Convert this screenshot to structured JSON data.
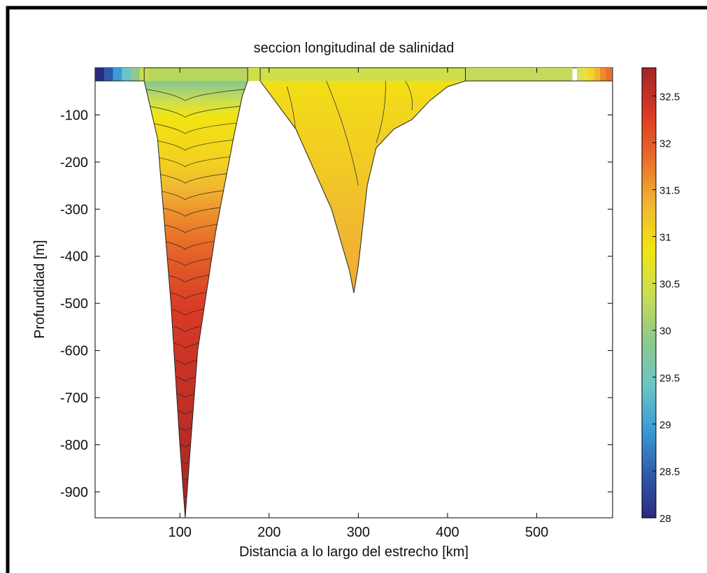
{
  "chart_data": {
    "type": "contour",
    "title": "seccion longitudinal de salinidad",
    "xlabel": "Distancia a lo largo del estrecho [km]",
    "ylabel": "Profundidad [m]",
    "xlim": [
      5,
      585
    ],
    "ylim": [
      -955,
      0
    ],
    "xticks": [
      100,
      200,
      300,
      400,
      500
    ],
    "yticks": [
      -100,
      -200,
      -300,
      -400,
      -500,
      -600,
      -700,
      -800,
      -900
    ],
    "colorbar": {
      "lim": [
        28,
        32.8
      ],
      "ticks": [
        28,
        28.5,
        29,
        29.5,
        30,
        30.5,
        31,
        31.5,
        32,
        32.5
      ],
      "colormap": [
        "#2a2a7c",
        "#2f5aa8",
        "#3a9bd5",
        "#6cc5c4",
        "#8ec98a",
        "#c9dd55",
        "#f2e512",
        "#f1b732",
        "#e8702a",
        "#d93a26",
        "#a52626"
      ]
    },
    "bathymetry": {
      "surface_depth": -28,
      "trench_1": {
        "x": [
          60,
          75,
          90,
          100,
          106,
          112,
          120,
          140,
          160,
          170,
          176
        ],
        "depth": [
          -28,
          -150,
          -500,
          -800,
          -955,
          -800,
          -600,
          -350,
          -150,
          -60,
          -28
        ]
      },
      "ridge": {
        "x": [
          176,
          190
        ],
        "depth": [
          -28,
          -28
        ]
      },
      "trench_2": {
        "x": [
          190,
          230,
          270,
          290,
          295,
          300,
          310,
          320,
          340,
          360,
          380,
          400,
          420
        ],
        "depth": [
          -28,
          -130,
          -300,
          -430,
          -478,
          -420,
          -250,
          -170,
          -130,
          -110,
          -70,
          -40,
          -28
        ]
      }
    },
    "salinity_profile": {
      "depth": [
        0,
        -100,
        -200,
        -300,
        -400,
        -500,
        -600,
        -700,
        -800,
        -955
      ],
      "trench_1": [
        29.5,
        30.9,
        31.1,
        31.6,
        32.0,
        32.3,
        32.45,
        32.55,
        32.65,
        32.8
      ],
      "trench_2": [
        30.9,
        31.05,
        31.15,
        31.3,
        31.4,
        31.45,
        31.45,
        31.45,
        31.45,
        31.45
      ]
    }
  }
}
